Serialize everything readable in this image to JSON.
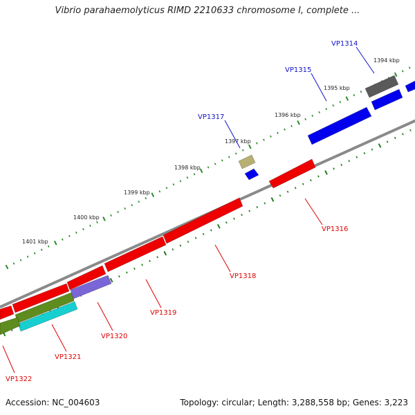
{
  "title": "Vibrio parahaemolyticus RIMD 2210633 chromosome I, complete ...",
  "footer": {
    "accession": "Accession: NC_004603",
    "stats": "Topology: circular; Length: 3,288,558 bp; Genes: 3,223"
  },
  "colors": {
    "backbone": "#8a8a8a",
    "outer_tick": "#2a8a2a",
    "inner_tick": "#1f7a1f",
    "forward_label": "#1010c8",
    "reverse_label": "#dd0000",
    "blue": "#0000ee",
    "red": "#ee0000",
    "olive": "#b8b070",
    "gray": "#5a5a5a",
    "purple": "#7a66d6",
    "green": "#5e8c1e",
    "cyan": "#18cfd0"
  },
  "kbp_labels": [
    "1394 kbp",
    "1395 kbp",
    "1396 kbp",
    "1397 kbp",
    "1398 kbp",
    "1399 kbp",
    "1400 kbp",
    "1401 kbp"
  ],
  "forward_genes": [
    {
      "label": "VP1314",
      "color": "gray"
    },
    {
      "label": "VP1315",
      "color": "blue"
    },
    {
      "label": "VP1317",
      "color": "olive"
    }
  ],
  "reverse_genes": [
    {
      "label": "VP1316",
      "color": "red"
    },
    {
      "label": "VP1318",
      "color": "red"
    },
    {
      "label": "VP1319",
      "color": "red"
    },
    {
      "label": "VP1320",
      "color": "purple"
    },
    {
      "label": "VP1321",
      "color": "green"
    },
    {
      "label": "VP1322",
      "color": "red"
    }
  ],
  "extra_features": [
    {
      "color": "blue"
    },
    {
      "color": "blue"
    },
    {
      "color": "red"
    },
    {
      "color": "red"
    },
    {
      "color": "red"
    },
    {
      "color": "cyan"
    }
  ]
}
